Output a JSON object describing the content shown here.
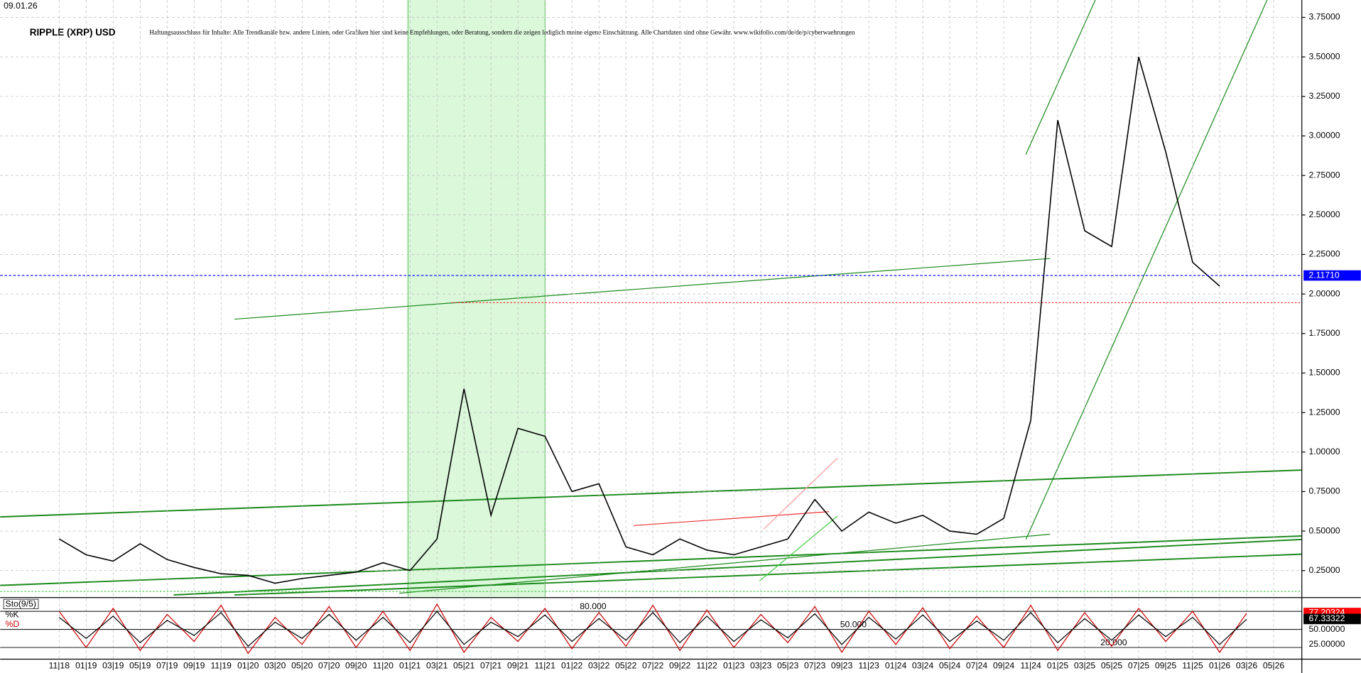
{
  "header": {
    "date": "09.01.26",
    "title": "RIPPLE (XRP) USD",
    "disclaimer": "Haftungsausschluss für Inhalte: Alle Trendkanäle bzw. andere Linien, oder Grafiken hier sind keine Empfehlungen, oder Beratung, sondern die zeigen lediglich meine eigene Einschätzung. Alle Chartdaten sind ohne Gewähr. www.wikifolio.com/de/de/p/cyberwaehrungen"
  },
  "chart_data": [
    {
      "type": "line",
      "categories": [
        "11|18",
        "01|19",
        "03|19",
        "05|19",
        "07|19",
        "09|19",
        "11|19",
        "01|20",
        "03|20",
        "05|20",
        "07|20",
        "09|20",
        "11|20",
        "01|21",
        "03|21",
        "05|21",
        "07|21",
        "09|21",
        "11|21",
        "01|22",
        "03|22",
        "05|22",
        "07|22",
        "09|22",
        "11|22",
        "01|23",
        "03|23",
        "05|23",
        "07|23",
        "09|23",
        "11|23",
        "01|24",
        "03|24",
        "05|24",
        "07|24",
        "09|24",
        "11|24",
        "01|25",
        "03|25",
        "05|25",
        "07|25",
        "09|25",
        "11|25",
        "01|26",
        "03|26",
        "05|26"
      ],
      "series": [
        {
          "color": "#000000",
          "values": [
            0.45,
            0.35,
            0.31,
            0.42,
            0.32,
            0.27,
            0.23,
            0.22,
            0.17,
            0.2,
            0.22,
            0.24,
            0.3,
            0.25,
            0.45,
            1.4,
            0.6,
            1.15,
            1.1,
            0.75,
            0.8,
            0.4,
            0.35,
            0.45,
            0.38,
            0.35,
            0.4,
            0.45,
            0.7,
            0.5,
            0.62,
            0.55,
            0.6,
            0.5,
            0.48,
            0.58,
            1.2,
            3.1,
            2.4,
            2.3,
            3.5,
            2.9,
            2.2,
            2.05,
            null,
            null
          ]
        }
      ],
      "ylim": [
        0.085,
        3.86
      ],
      "yticks": [
        {
          "value": 0.25,
          "label": "0.25000"
        },
        {
          "value": 0.5,
          "label": "0.50000"
        },
        {
          "value": 0.75,
          "label": "0.75000"
        },
        {
          "value": 1,
          "label": "1.00000"
        },
        {
          "value": 1.25,
          "label": "1.25000"
        },
        {
          "value": 1.5,
          "label": "1.50000"
        },
        {
          "value": 1.75,
          "label": "1.75000"
        },
        {
          "value": 2,
          "label": "2.00000"
        },
        {
          "value": 2.25,
          "label": "2.25000"
        },
        {
          "value": 2.5,
          "label": "2.50000"
        },
        {
          "value": 2.75,
          "label": "2.75000"
        },
        {
          "value": 3,
          "label": "3.00000"
        },
        {
          "value": 3.25,
          "label": "3.25000"
        },
        {
          "value": 3.5,
          "label": "3.50000"
        },
        {
          "value": 3.75,
          "label": "3.75000"
        }
      ],
      "current": {
        "value": 2.1171,
        "label": "2.11710",
        "color": "#0000ff"
      },
      "grid": true
    },
    {
      "type": "stochastic",
      "legend": "Sto(9/5)",
      "series": [
        {
          "name": "%K",
          "color": "#cc0000",
          "values": [
            80,
            20,
            85,
            15,
            75,
            30,
            90,
            10,
            70,
            25,
            88,
            20,
            80,
            15,
            92,
            12,
            70,
            30,
            85,
            18,
            78,
            22,
            90,
            15,
            82,
            20,
            75,
            28,
            88,
            12,
            80,
            25,
            86,
            18,
            72,
            20,
            90,
            15,
            78,
            22,
            85,
            30,
            80,
            12,
            77,
            null
          ]
        },
        {
          "name": "%D",
          "color": "#000000",
          "values": [
            70,
            35,
            72,
            28,
            65,
            40,
            78,
            22,
            62,
            35,
            75,
            32,
            70,
            28,
            80,
            25,
            62,
            38,
            74,
            30,
            68,
            32,
            78,
            28,
            72,
            30,
            66,
            36,
            76,
            25,
            70,
            34,
            74,
            30,
            64,
            32,
            78,
            28,
            68,
            32,
            74,
            38,
            70,
            25,
            67,
            null
          ]
        }
      ],
      "ylim": [
        5,
        100
      ],
      "yticks": [
        {
          "value": 25,
          "label": "25.00000"
        },
        {
          "value": 50,
          "label": "50.00000"
        }
      ],
      "levels": [
        {
          "value": 80,
          "label": "80.000"
        },
        {
          "value": 50,
          "label": "50.000"
        },
        {
          "value": 20,
          "label": "20.000"
        }
      ],
      "last_k": {
        "value": 77.20324,
        "label": "77.20324"
      },
      "last_d": {
        "value": 67.33322,
        "label": "67.33322"
      }
    }
  ]
}
